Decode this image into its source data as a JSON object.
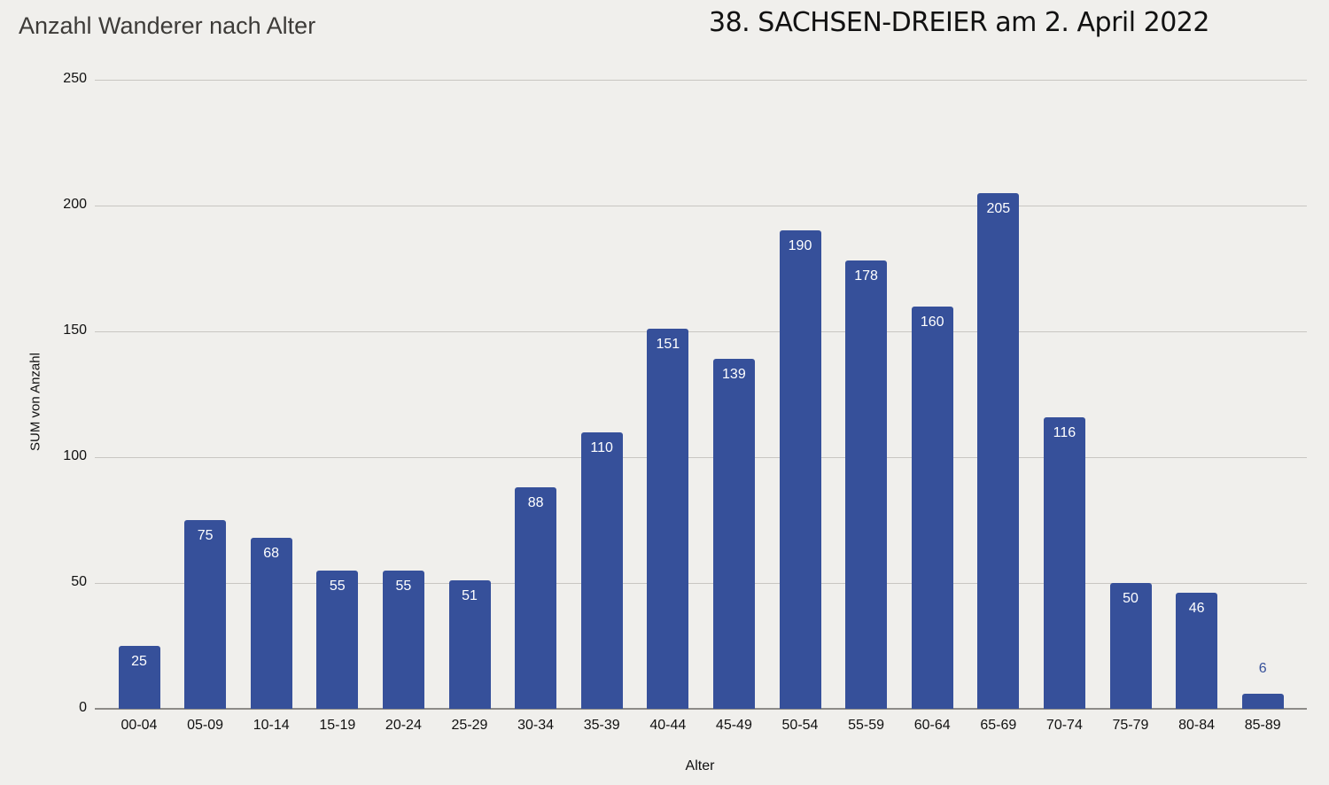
{
  "header": {
    "title": "Anzahl Wanderer nach Alter",
    "subtitle": "38. SACHSEN-DREIER am 2. April 2022"
  },
  "axes": {
    "xlabel": "Alter",
    "ylabel": "SUM von Anzahl",
    "yticks": [
      "0",
      "50",
      "100",
      "150",
      "200",
      "250"
    ]
  },
  "colors": {
    "bar": "#36509a",
    "background": "#f0efec"
  },
  "chart_data": {
    "type": "bar",
    "title": "Anzahl Wanderer nach Alter",
    "subtitle": "38. SACHSEN-DREIER am 2. April 2022",
    "xlabel": "Alter",
    "ylabel": "SUM von Anzahl",
    "ylim": [
      0,
      250
    ],
    "yticks": [
      0,
      50,
      100,
      150,
      200,
      250
    ],
    "grid": true,
    "legend": "none",
    "categories": [
      "00-04",
      "05-09",
      "10-14",
      "15-19",
      "20-24",
      "25-29",
      "30-34",
      "35-39",
      "40-44",
      "45-49",
      "50-54",
      "55-59",
      "60-64",
      "65-69",
      "70-74",
      "75-79",
      "80-84",
      "85-89"
    ],
    "values": [
      25,
      75,
      68,
      55,
      55,
      51,
      88,
      110,
      151,
      139,
      190,
      178,
      160,
      205,
      116,
      50,
      46,
      6
    ]
  }
}
